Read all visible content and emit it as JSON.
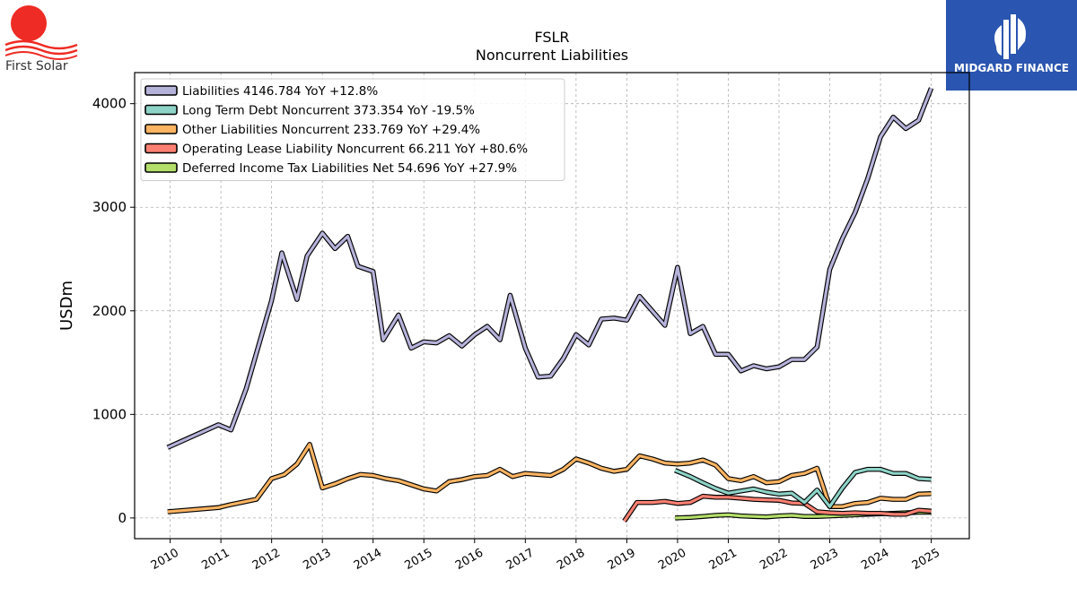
{
  "brand": {
    "name": "First Solar",
    "sun_color": "#ee2b24",
    "wave_color": "#ee2b24"
  },
  "partner": {
    "name": "MIDGARD FINANCE",
    "bg_color": "#2a55b0"
  },
  "chart_data": {
    "type": "line",
    "title": "FSLR",
    "subtitle": "Noncurrent  Liabilities",
    "xlabel": "",
    "ylabel": "USDm",
    "xlim": [
      2009.3,
      2025.75
    ],
    "ylim": [
      -200,
      4300
    ],
    "yticks": [
      0,
      1000,
      2000,
      3000,
      4000
    ],
    "xticks": [
      "2010",
      "2011",
      "2012",
      "2013",
      "2014",
      "2015",
      "2016",
      "2017",
      "2018",
      "2019",
      "2020",
      "2021",
      "2022",
      "2023",
      "2024",
      "2025"
    ],
    "grid": true,
    "legend_position": "top-left",
    "series": [
      {
        "name": "Liabilities  4146.784 YoY +12.8%",
        "color": "#b5b2da",
        "x": [
          2009.95,
          2010.95,
          2011.2,
          2011.5,
          2012.0,
          2012.2,
          2012.5,
          2012.7,
          2013.0,
          2013.25,
          2013.5,
          2013.7,
          2014.0,
          2014.2,
          2014.5,
          2014.75,
          2015.0,
          2015.25,
          2015.5,
          2015.75,
          2016.0,
          2016.25,
          2016.5,
          2016.7,
          2017.0,
          2017.25,
          2017.5,
          2017.75,
          2018.0,
          2018.25,
          2018.5,
          2018.75,
          2019.0,
          2019.25,
          2019.5,
          2019.75,
          2020.0,
          2020.25,
          2020.5,
          2020.75,
          2021.0,
          2021.25,
          2021.5,
          2021.75,
          2022.0,
          2022.25,
          2022.5,
          2022.75,
          2023.0,
          2023.25,
          2023.5,
          2023.75,
          2024.0,
          2024.25,
          2024.5,
          2024.75,
          2025.0
        ],
        "y": [
          680,
          900,
          850,
          1250,
          2100,
          2560,
          2110,
          2530,
          2750,
          2600,
          2720,
          2430,
          2380,
          1720,
          1960,
          1640,
          1700,
          1690,
          1760,
          1660,
          1770,
          1850,
          1720,
          2150,
          1640,
          1360,
          1370,
          1540,
          1770,
          1670,
          1920,
          1930,
          1910,
          2140,
          2000,
          1860,
          2420,
          1780,
          1850,
          1580,
          1580,
          1420,
          1470,
          1440,
          1460,
          1530,
          1530,
          1650,
          2400,
          2700,
          2950,
          3280,
          3680,
          3870,
          3760,
          3840,
          4150
        ]
      },
      {
        "name": "Long Term Debt Noncurrent  373.354 YoY -19.5%",
        "color": "#8dd3c7",
        "x": [
          2019.95,
          2020.25,
          2020.5,
          2020.75,
          2021.0,
          2021.25,
          2021.5,
          2021.75,
          2022.0,
          2022.25,
          2022.5,
          2022.75,
          2023.0,
          2023.25,
          2023.5,
          2023.75,
          2024.0,
          2024.25,
          2024.5,
          2024.75,
          2025.0
        ],
        "y": [
          460,
          400,
          340,
          285,
          240,
          260,
          280,
          250,
          230,
          240,
          150,
          270,
          110,
          290,
          440,
          470,
          470,
          430,
          430,
          380,
          373
        ]
      },
      {
        "name": "Other Liabilities Noncurrent  233.769 YoY +29.4%",
        "color": "#fdb462",
        "x": [
          2009.95,
          2010.95,
          2011.2,
          2011.5,
          2011.7,
          2012.0,
          2012.25,
          2012.5,
          2012.75,
          2013.0,
          2013.25,
          2013.5,
          2013.75,
          2014.0,
          2014.25,
          2014.5,
          2014.75,
          2015.0,
          2015.25,
          2015.5,
          2015.75,
          2016.0,
          2016.25,
          2016.5,
          2016.75,
          2017.0,
          2017.25,
          2017.5,
          2017.75,
          2018.0,
          2018.25,
          2018.5,
          2018.75,
          2019.0,
          2019.25,
          2019.5,
          2019.75,
          2020.0,
          2020.25,
          2020.5,
          2020.75,
          2021.0,
          2021.25,
          2021.5,
          2021.75,
          2022.0,
          2022.25,
          2022.5,
          2022.75,
          2023.0,
          2023.25,
          2023.5,
          2023.75,
          2024.0,
          2024.25,
          2024.5,
          2024.75,
          2025.0
        ],
        "y": [
          60,
          100,
          130,
          160,
          180,
          380,
          420,
          520,
          710,
          290,
          330,
          380,
          420,
          410,
          380,
          360,
          320,
          280,
          260,
          350,
          370,
          400,
          410,
          470,
          400,
          430,
          420,
          410,
          470,
          570,
          530,
          480,
          450,
          470,
          600,
          570,
          530,
          520,
          530,
          560,
          510,
          380,
          360,
          400,
          340,
          350,
          410,
          430,
          480,
          110,
          110,
          140,
          150,
          190,
          180,
          180,
          230,
          234
        ]
      },
      {
        "name": "Operating Lease Liability Noncurrent  66.211 YoY +80.6%",
        "color": "#fb8072",
        "x": [
          2018.95,
          2019.2,
          2019.5,
          2019.75,
          2020.0,
          2020.25,
          2020.5,
          2020.75,
          2021.0,
          2021.25,
          2021.5,
          2021.75,
          2022.0,
          2022.25,
          2022.5,
          2022.75,
          2023.0,
          2023.25,
          2023.5,
          2023.75,
          2024.0,
          2024.25,
          2024.5,
          2024.75,
          2025.0
        ],
        "y": [
          -30,
          150,
          150,
          160,
          140,
          150,
          210,
          200,
          200,
          190,
          180,
          175,
          170,
          145,
          140,
          60,
          50,
          45,
          50,
          45,
          45,
          35,
          35,
          75,
          66
        ]
      },
      {
        "name": "Deferred Income Tax Liabilities Net  54.696 YoY +27.9%",
        "color": "#b3de69",
        "x": [
          2019.95,
          2020.25,
          2020.5,
          2020.75,
          2021.0,
          2021.25,
          2021.5,
          2021.75,
          2022.0,
          2022.25,
          2022.5,
          2022.75,
          2023.0,
          2023.25,
          2023.5,
          2023.75,
          2024.0,
          2024.25,
          2024.5,
          2024.75,
          2025.0
        ],
        "y": [
          0,
          5,
          15,
          25,
          30,
          20,
          15,
          10,
          20,
          25,
          15,
          15,
          20,
          25,
          30,
          35,
          40,
          45,
          50,
          55,
          55
        ]
      }
    ]
  }
}
